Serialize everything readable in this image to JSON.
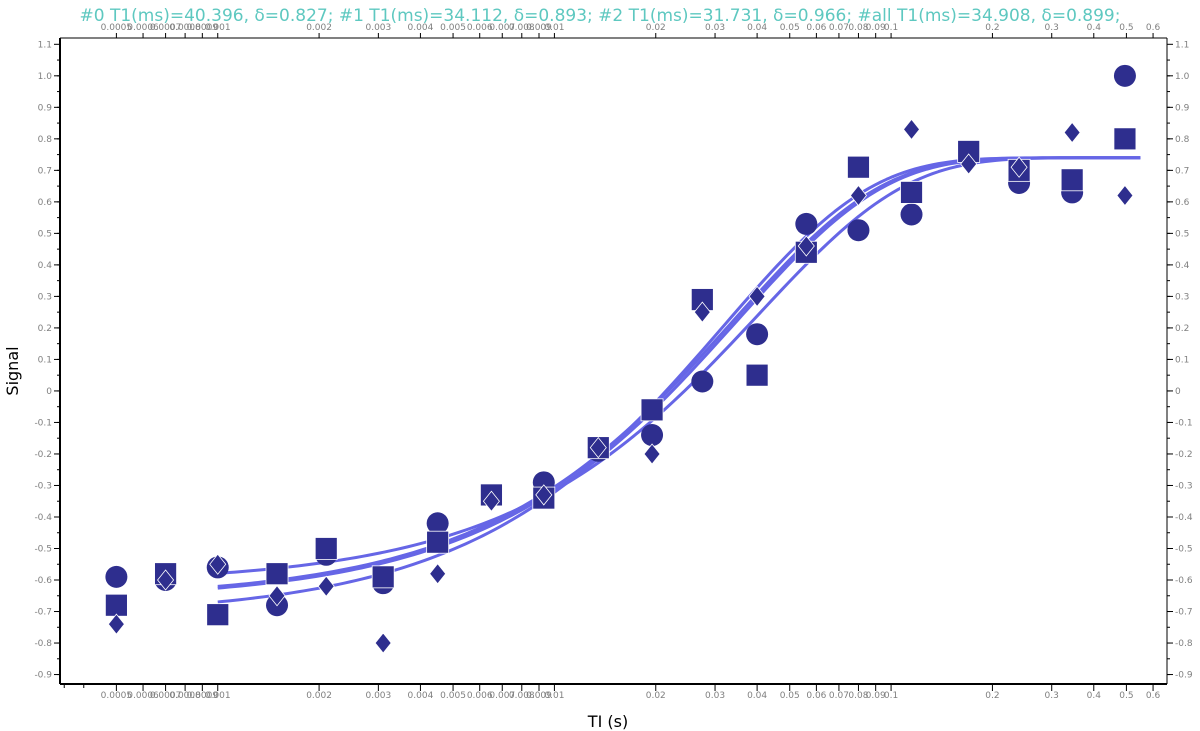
{
  "chart_data": {
    "type": "scatter",
    "title": "#0 T1(ms)=40.396, δ=0.827; #1 T1(ms)=34.112, δ=0.893; #2 T1(ms)=31.731, δ=0.966; #all T1(ms)=34.908, δ=0.899;",
    "xlabel": "TI (s)",
    "ylabel": "Signal",
    "x_scale": "log",
    "xlim": [
      0.00034,
      0.66
    ],
    "ylim": [
      -0.93,
      1.12
    ],
    "x_ticks_major": [
      {
        "v": 0.0005,
        "label": "0.0005"
      },
      {
        "v": 0.0006,
        "label": "0.0006"
      },
      {
        "v": 0.0007,
        "label": "0.0007"
      },
      {
        "v": 0.0008,
        "label": "0.0008"
      },
      {
        "v": 0.0009,
        "label": "0.0009"
      },
      {
        "v": 0.001,
        "label": "0.001"
      },
      {
        "v": 0.002,
        "label": "0.002"
      },
      {
        "v": 0.003,
        "label": "0.003"
      },
      {
        "v": 0.004,
        "label": "0.004"
      },
      {
        "v": 0.005,
        "label": "0.005"
      },
      {
        "v": 0.006,
        "label": "0.006"
      },
      {
        "v": 0.007,
        "label": "0.007"
      },
      {
        "v": 0.008,
        "label": "0.008"
      },
      {
        "v": 0.009,
        "label": "0.009"
      },
      {
        "v": 0.01,
        "label": "0.01"
      },
      {
        "v": 0.02,
        "label": "0.02"
      },
      {
        "v": 0.03,
        "label": "0.03"
      },
      {
        "v": 0.04,
        "label": "0.04"
      },
      {
        "v": 0.05,
        "label": "0.05"
      },
      {
        "v": 0.06,
        "label": "0.06"
      },
      {
        "v": 0.07,
        "label": "0.07"
      },
      {
        "v": 0.08,
        "label": "0.08"
      },
      {
        "v": 0.09,
        "label": "0.09"
      },
      {
        "v": 0.1,
        "label": "0.1"
      },
      {
        "v": 0.2,
        "label": "0.2"
      },
      {
        "v": 0.3,
        "label": "0.3"
      },
      {
        "v": 0.4,
        "label": "0.4"
      },
      {
        "v": 0.5,
        "label": "0.5"
      },
      {
        "v": 0.6,
        "label": "0.6"
      }
    ],
    "y_ticks": [
      {
        "v": 1.1,
        "label": "1.1"
      },
      {
        "v": 1.0,
        "label": "1.0"
      },
      {
        "v": 0.9,
        "label": "0.9"
      },
      {
        "v": 0.8,
        "label": "0.8"
      },
      {
        "v": 0.7,
        "label": "0.7"
      },
      {
        "v": 0.6,
        "label": "0.6"
      },
      {
        "v": 0.5,
        "label": "0.5"
      },
      {
        "v": 0.4,
        "label": "0.4"
      },
      {
        "v": 0.3,
        "label": "0.3"
      },
      {
        "v": 0.2,
        "label": "0.2"
      },
      {
        "v": 0.1,
        "label": "0.1"
      },
      {
        "v": 0.0,
        "label": "0"
      },
      {
        "v": -0.1,
        "label": "-0.1"
      },
      {
        "v": -0.2,
        "label": "-0.2"
      },
      {
        "v": -0.3,
        "label": "-0.3"
      },
      {
        "v": -0.4,
        "label": "-0.4"
      },
      {
        "v": -0.5,
        "label": "-0.5"
      },
      {
        "v": -0.6,
        "label": "-0.6"
      },
      {
        "v": -0.7,
        "label": "-0.7"
      },
      {
        "v": -0.8,
        "label": "-0.8"
      },
      {
        "v": -0.9,
        "label": "-0.9"
      }
    ],
    "grid": false,
    "marker_color": "#2e2e8e",
    "curve_color": "#6666e6",
    "series": [
      {
        "marker": "circle",
        "points": [
          [
            0.0005,
            -0.59
          ],
          [
            0.0007,
            -0.6
          ],
          [
            0.001,
            -0.56
          ],
          [
            0.0015,
            -0.68
          ],
          [
            0.0021,
            -0.52
          ],
          [
            0.0031,
            -0.61
          ],
          [
            0.0045,
            -0.42
          ],
          [
            0.0065,
            -0.33
          ],
          [
            0.0093,
            -0.29
          ],
          [
            0.0135,
            -0.19
          ],
          [
            0.0195,
            -0.14
          ],
          [
            0.0275,
            0.03
          ],
          [
            0.04,
            0.18
          ],
          [
            0.056,
            0.53
          ],
          [
            0.08,
            0.51
          ],
          [
            0.115,
            0.56
          ],
          [
            0.17,
            0.76
          ],
          [
            0.24,
            0.66
          ],
          [
            0.345,
            0.63
          ],
          [
            0.495,
            1.0
          ]
        ]
      },
      {
        "marker": "square",
        "points": [
          [
            0.0005,
            -0.68
          ],
          [
            0.0007,
            -0.58
          ],
          [
            0.001,
            -0.71
          ],
          [
            0.0015,
            -0.58
          ],
          [
            0.0021,
            -0.5
          ],
          [
            0.0031,
            -0.59
          ],
          [
            0.0045,
            -0.48
          ],
          [
            0.0065,
            -0.33
          ],
          [
            0.0093,
            -0.34
          ],
          [
            0.0135,
            -0.18
          ],
          [
            0.0195,
            -0.06
          ],
          [
            0.0275,
            0.29
          ],
          [
            0.04,
            0.05
          ],
          [
            0.056,
            0.44
          ],
          [
            0.08,
            0.71
          ],
          [
            0.115,
            0.63
          ],
          [
            0.17,
            0.76
          ],
          [
            0.24,
            0.7
          ],
          [
            0.345,
            0.67
          ],
          [
            0.495,
            0.8
          ]
        ]
      },
      {
        "marker": "diamond",
        "points": [
          [
            0.0005,
            -0.74
          ],
          [
            0.0007,
            -0.6
          ],
          [
            0.001,
            -0.55
          ],
          [
            0.0015,
            -0.65
          ],
          [
            0.0021,
            -0.62
          ],
          [
            0.0031,
            -0.8
          ],
          [
            0.0045,
            -0.58
          ],
          [
            0.0065,
            -0.35
          ],
          [
            0.0093,
            -0.33
          ],
          [
            0.0135,
            -0.18
          ],
          [
            0.0195,
            -0.2
          ],
          [
            0.0275,
            0.25
          ],
          [
            0.04,
            0.3
          ],
          [
            0.056,
            0.46
          ],
          [
            0.08,
            0.62
          ],
          [
            0.115,
            0.83
          ],
          [
            0.17,
            0.72
          ],
          [
            0.24,
            0.71
          ],
          [
            0.345,
            0.82
          ],
          [
            0.495,
            0.62
          ]
        ]
      }
    ],
    "fit_curves": [
      {
        "A": 0.74,
        "delta": 0.827,
        "T1": 0.040396
      },
      {
        "A": 0.74,
        "delta": 0.893,
        "T1": 0.034112
      },
      {
        "A": 0.74,
        "delta": 0.966,
        "T1": 0.031731
      },
      {
        "A": 0.74,
        "delta": 0.899,
        "T1": 0.034908
      }
    ],
    "fit_range": [
      0.001,
      0.55
    ]
  }
}
